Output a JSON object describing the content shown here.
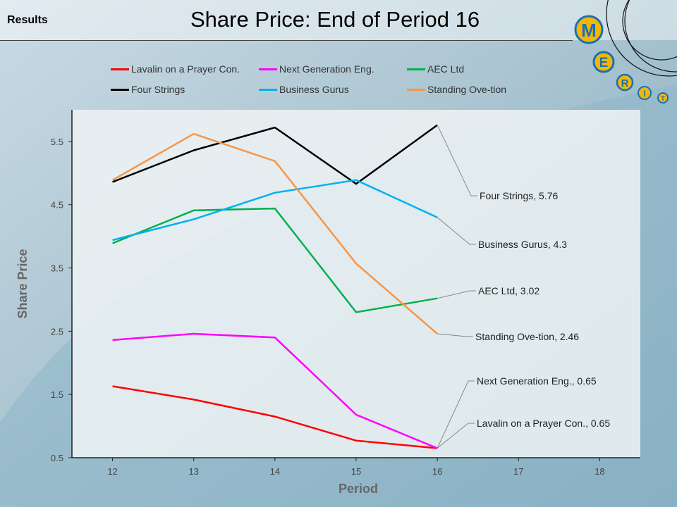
{
  "header": {
    "section_label": "Results",
    "title": "Share Price: End of Period 16"
  },
  "logo": {
    "letters": [
      "M",
      "E",
      "R",
      "I",
      "T"
    ]
  },
  "chart_data": {
    "type": "line",
    "title": "Share Price: End of Period 16",
    "xlabel": "Period",
    "ylabel": "Share Price",
    "x": [
      12,
      13,
      14,
      15,
      16
    ],
    "xticks": [
      12,
      13,
      14,
      15,
      16,
      17,
      18
    ],
    "xlim": [
      11.5,
      18.5
    ],
    "yticks": [
      0.5,
      1.5,
      2.5,
      3.5,
      4.5,
      5.5
    ],
    "ytick_labels": [
      "0.5",
      "1.5",
      "2.5",
      "3.5",
      "4.5",
      "5.5"
    ],
    "ylim": [
      0.5,
      6.0
    ],
    "grid": false,
    "legend_position": "top",
    "series": [
      {
        "name": "Lavalin on a Prayer Con.",
        "color": "#ff0000",
        "values": [
          1.63,
          1.42,
          1.15,
          0.77,
          0.65
        ],
        "end_label": "Lavalin on a Prayer Con., 0.65"
      },
      {
        "name": "Next Generation Eng.",
        "color": "#ff00ff",
        "values": [
          2.36,
          2.46,
          2.4,
          1.18,
          0.65
        ],
        "end_label": "Next Generation Eng., 0.65"
      },
      {
        "name": "AEC Ltd",
        "color": "#00b050",
        "values": [
          3.89,
          4.41,
          4.44,
          2.8,
          3.02
        ],
        "end_label": "AEC Ltd, 3.02"
      },
      {
        "name": "Four Strings",
        "color": "#000000",
        "values": [
          4.86,
          5.36,
          5.72,
          4.83,
          5.76
        ],
        "end_label": "Four Strings, 5.76"
      },
      {
        "name": "Business Gurus",
        "color": "#00b0f0",
        "values": [
          3.94,
          4.27,
          4.69,
          4.89,
          4.3
        ],
        "end_label": "Business Gurus,  4.3"
      },
      {
        "name": "Standing Ove-tion",
        "color": "#f79646",
        "values": [
          4.89,
          5.62,
          5.19,
          3.57,
          2.46
        ],
        "end_label": "Standing Ove-tion,  2.46"
      }
    ]
  }
}
